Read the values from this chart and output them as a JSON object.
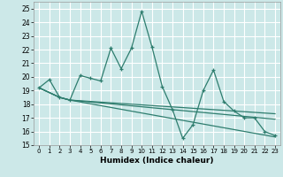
{
  "xlabel": "Humidex (Indice chaleur)",
  "xlim": [
    -0.5,
    23.5
  ],
  "ylim": [
    15,
    25.5
  ],
  "yticks": [
    15,
    16,
    17,
    18,
    19,
    20,
    21,
    22,
    23,
    24,
    25
  ],
  "xticks": [
    0,
    1,
    2,
    3,
    4,
    5,
    6,
    7,
    8,
    9,
    10,
    11,
    12,
    13,
    14,
    15,
    16,
    17,
    18,
    19,
    20,
    21,
    22,
    23
  ],
  "bg_color": "#cce8e8",
  "grid_color": "#ffffff",
  "line_color": "#2e7d6e",
  "line1_x": [
    0,
    1,
    2,
    3,
    4,
    5,
    6,
    7,
    8,
    9,
    10,
    11,
    12,
    13,
    14,
    15,
    16,
    17,
    18,
    19,
    20,
    21,
    22,
    23
  ],
  "line1_y": [
    19.2,
    19.8,
    18.5,
    18.3,
    20.1,
    19.9,
    19.7,
    22.1,
    20.6,
    22.1,
    24.8,
    22.2,
    19.3,
    17.6,
    15.5,
    16.5,
    19.0,
    20.5,
    18.2,
    17.5,
    17.0,
    17.0,
    16.0,
    15.7
  ],
  "line2_x": [
    0,
    2,
    3,
    23
  ],
  "line2_y": [
    19.2,
    18.5,
    18.3,
    15.6
  ],
  "line3_x": [
    0,
    2,
    3,
    23
  ],
  "line3_y": [
    19.2,
    18.5,
    18.3,
    16.9
  ],
  "line4_x": [
    0,
    2,
    3,
    23
  ],
  "line4_y": [
    19.2,
    18.5,
    18.3,
    17.3
  ]
}
